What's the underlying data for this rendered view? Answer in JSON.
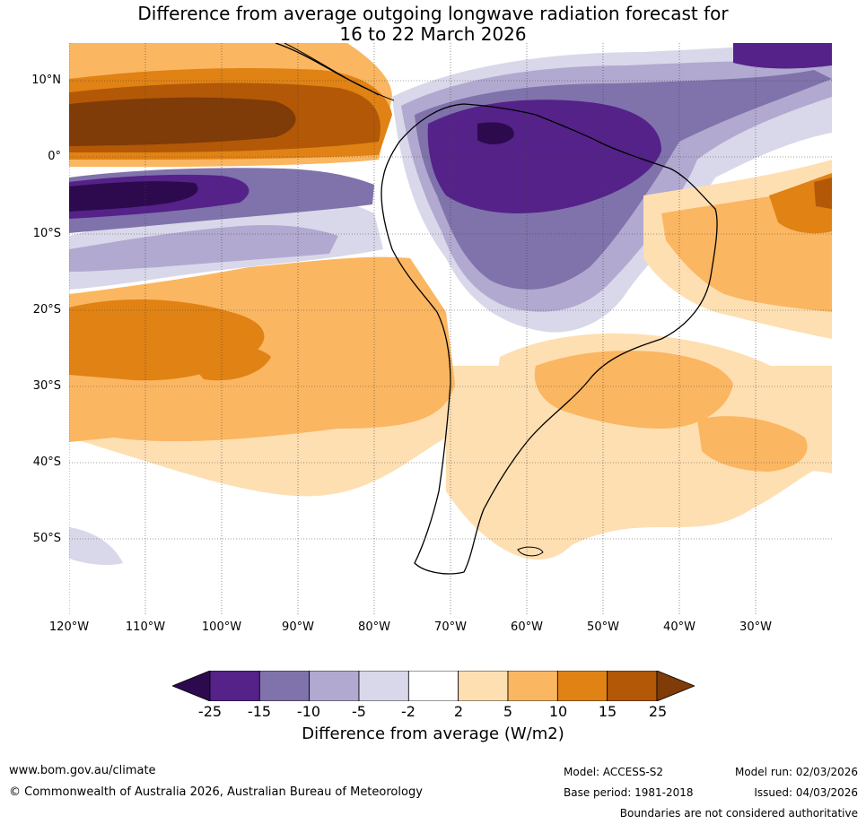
{
  "title": {
    "line1": "Difference from average outgoing longwave radiation forecast for",
    "line2": "16 to 22 March 2026"
  },
  "map": {
    "lat_labels": [
      "10°N",
      "0°",
      "10°S",
      "20°S",
      "30°S",
      "40°S",
      "50°S"
    ],
    "lon_labels": [
      "120°W",
      "110°W",
      "100°W",
      "90°W",
      "80°W",
      "70°W",
      "60°W",
      "50°W",
      "40°W",
      "30°W"
    ]
  },
  "colorbar": {
    "ticks": [
      "-25",
      "-15",
      "-10",
      "-5",
      "-2",
      "2",
      "5",
      "10",
      "15",
      "25"
    ],
    "colors": [
      "#2d0a4e",
      "#542288",
      "#8072ab",
      "#b1a9d0",
      "#d9d8ea",
      "#ffffff",
      "#fedfb2",
      "#fbb661",
      "#e08214",
      "#b35806",
      "#7f3b08"
    ],
    "label": "Difference from average (W/m2)"
  },
  "footer": {
    "website": "www.bom.gov.au/climate",
    "copyright": "© Commonwealth of Australia 2026, Australian Bureau of Meteorology",
    "model": "Model: ACCESS-S2",
    "base_period": "Base period: 1981-2018",
    "model_run": "Model run: 02/03/2026",
    "issued": "Issued: 04/03/2026",
    "disclaimer": "Boundaries are not considered authoritative"
  }
}
